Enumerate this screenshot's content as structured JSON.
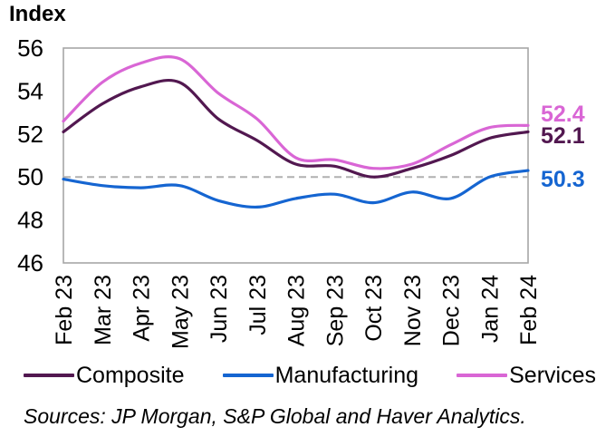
{
  "title": "Index",
  "source_note": "Sources: JP Morgan, S&P Global and Haver Analytics.",
  "colors": {
    "composite": "#521850",
    "manufacturing": "#1565d1",
    "services": "#d966d5",
    "axis": "#a6a6a6",
    "reference_line": "#b0b0b0",
    "text": "#000000"
  },
  "chart_data": {
    "type": "line",
    "title": "Index",
    "categories": [
      "Feb 23",
      "Mar 23",
      "Apr 23",
      "May 23",
      "Jun 23",
      "Jul 23",
      "Aug 23",
      "Sep 23",
      "Oct 23",
      "Nov 23",
      "Dec 23",
      "Jan 24",
      "Feb 24"
    ],
    "series": [
      {
        "name": "Composite",
        "color": "#521850",
        "values": [
          52.1,
          53.4,
          54.2,
          54.4,
          52.7,
          51.7,
          50.6,
          50.5,
          50.0,
          50.4,
          51.0,
          51.8,
          52.1
        ],
        "end_label": "52.1"
      },
      {
        "name": "Manufacturing",
        "color": "#1565d1",
        "values": [
          49.9,
          49.6,
          49.5,
          49.6,
          48.9,
          48.6,
          49.0,
          49.2,
          48.8,
          49.3,
          49.0,
          50.0,
          50.3
        ],
        "end_label": "50.3"
      },
      {
        "name": "Services",
        "color": "#d966d5",
        "values": [
          52.6,
          54.4,
          55.3,
          55.5,
          53.9,
          52.7,
          50.9,
          50.8,
          50.4,
          50.6,
          51.5,
          52.3,
          52.4
        ],
        "end_label": "52.4"
      }
    ],
    "ylabel": "Index",
    "ylim": [
      46,
      56
    ],
    "yticks": [
      46,
      48,
      50,
      52,
      54,
      56
    ],
    "reference_line": 50.0,
    "grid": false,
    "legend_position": "bottom"
  }
}
